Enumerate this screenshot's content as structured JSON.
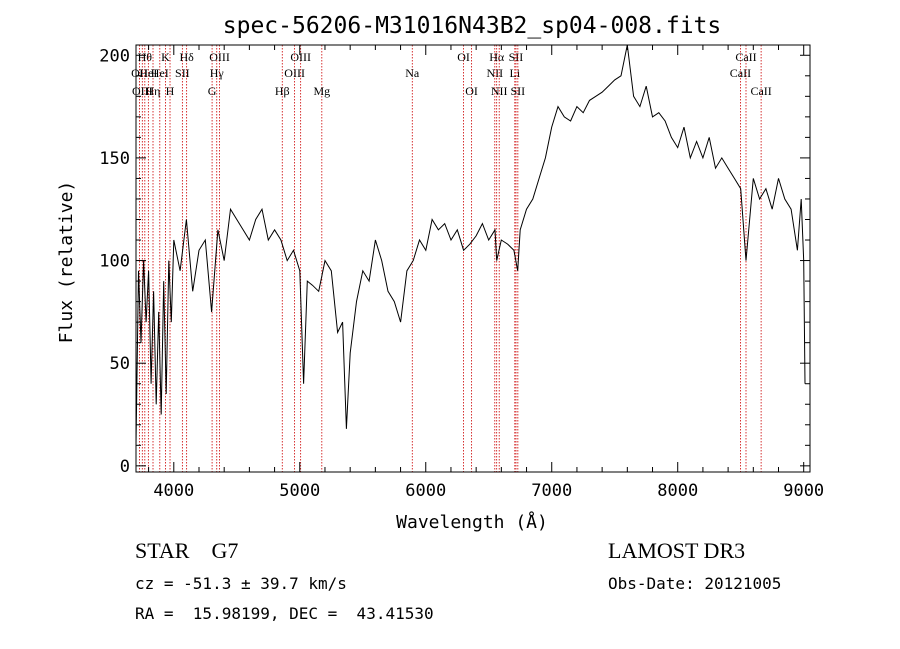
{
  "chart_data": {
    "type": "line",
    "title": "spec-56206-M31016N43B2_sp04-008.fits",
    "xlabel": "Wavelength (Å)",
    "ylabel": "Flux (relative)",
    "xlim": [
      3700,
      9050
    ],
    "ylim": [
      -3,
      205
    ],
    "xticks": [
      4000,
      5000,
      6000,
      7000,
      8000,
      9000
    ],
    "yticks": [
      0,
      50,
      100,
      150,
      200
    ],
    "grid": false,
    "line_color": "#000000",
    "marker_line_color": "#cc0000",
    "series": [
      {
        "x": [
          3700,
          3720,
          3740,
          3760,
          3780,
          3800,
          3820,
          3840,
          3860,
          3880,
          3900,
          3920,
          3940,
          3960,
          3980,
          4000,
          4050,
          4100,
          4150,
          4200,
          4250,
          4300,
          4350,
          4400,
          4450,
          4500,
          4550,
          4600,
          4650,
          4700,
          4750,
          4800,
          4850,
          4900,
          4950,
          5000,
          5030,
          5060,
          5100,
          5150,
          5200,
          5250,
          5300,
          5340,
          5370,
          5400,
          5450,
          5500,
          5550,
          5600,
          5650,
          5700,
          5750,
          5800,
          5850,
          5900,
          5950,
          6000,
          6050,
          6100,
          6150,
          6200,
          6250,
          6300,
          6350,
          6400,
          6450,
          6500,
          6550,
          6563,
          6600,
          6650,
          6700,
          6730,
          6750,
          6800,
          6850,
          6900,
          6950,
          7000,
          7050,
          7100,
          7150,
          7200,
          7250,
          7300,
          7350,
          7400,
          7450,
          7500,
          7550,
          7600,
          7650,
          7700,
          7750,
          7800,
          7850,
          7900,
          7950,
          8000,
          8050,
          8100,
          8150,
          8200,
          8250,
          8300,
          8350,
          8400,
          8450,
          8500,
          8542,
          8600,
          8650,
          8700,
          8750,
          8800,
          8850,
          8900,
          8950,
          8980,
          9000,
          9010
        ],
        "y": [
          10,
          95,
          60,
          100,
          70,
          95,
          40,
          85,
          30,
          75,
          25,
          90,
          35,
          100,
          70,
          110,
          95,
          120,
          85,
          105,
          110,
          75,
          115,
          100,
          125,
          120,
          115,
          110,
          120,
          125,
          110,
          115,
          110,
          100,
          105,
          95,
          40,
          90,
          88,
          85,
          100,
          95,
          65,
          70,
          18,
          55,
          80,
          95,
          90,
          110,
          100,
          85,
          80,
          70,
          95,
          100,
          110,
          105,
          120,
          115,
          118,
          110,
          115,
          105,
          108,
          112,
          118,
          110,
          115,
          100,
          110,
          108,
          105,
          95,
          115,
          125,
          130,
          140,
          150,
          165,
          175,
          170,
          168,
          175,
          172,
          178,
          180,
          182,
          185,
          188,
          190,
          205,
          180,
          175,
          185,
          170,
          172,
          168,
          160,
          155,
          165,
          150,
          158,
          150,
          160,
          145,
          150,
          145,
          140,
          135,
          100,
          140,
          130,
          135,
          125,
          140,
          130,
          125,
          105,
          130,
          100,
          40
        ]
      }
    ],
    "line_markers": [
      {
        "wl": 3727,
        "label": "OII",
        "row": 1
      },
      {
        "wl": 3750,
        "label": "OIII",
        "row": 2
      },
      {
        "wl": 3770,
        "label": "Hθ",
        "row": 0
      },
      {
        "wl": 3798,
        "label": "HeI",
        "row": 1
      },
      {
        "wl": 3835,
        "label": "Hη",
        "row": 2
      },
      {
        "wl": 3889,
        "label": "HeI",
        "row": 1
      },
      {
        "wl": 3934,
        "label": "K",
        "row": 0
      },
      {
        "wl": 3970,
        "label": "H",
        "row": 2
      },
      {
        "wl": 4068,
        "label": "SII",
        "row": 1
      },
      {
        "wl": 4102,
        "label": "Hδ",
        "row": 0
      },
      {
        "wl": 4304,
        "label": "G",
        "row": 2
      },
      {
        "wl": 4341,
        "label": "Hγ",
        "row": 1
      },
      {
        "wl": 4363,
        "label": "OIII",
        "row": 0
      },
      {
        "wl": 4861,
        "label": "Hβ",
        "row": 2
      },
      {
        "wl": 4959,
        "label": "OIII",
        "row": 1
      },
      {
        "wl": 5007,
        "label": "OIII",
        "row": 0
      },
      {
        "wl": 5175,
        "label": "Mg",
        "row": 2
      },
      {
        "wl": 5893,
        "label": "Na",
        "row": 1
      },
      {
        "wl": 6300,
        "label": "OI",
        "row": 0
      },
      {
        "wl": 6364,
        "label": "OI",
        "row": 2
      },
      {
        "wl": 6548,
        "label": "NII",
        "row": 1
      },
      {
        "wl": 6563,
        "label": "Hα",
        "row": 0
      },
      {
        "wl": 6583,
        "label": "NII",
        "row": 2
      },
      {
        "wl": 6707,
        "label": "Li",
        "row": 1
      },
      {
        "wl": 6716,
        "label": "SII",
        "row": 0
      },
      {
        "wl": 6731,
        "label": "SII",
        "row": 2
      },
      {
        "wl": 8498,
        "label": "CaII",
        "row": 1
      },
      {
        "wl": 8542,
        "label": "CaII",
        "row": 0
      },
      {
        "wl": 8662,
        "label": "CaII",
        "row": 2
      }
    ]
  },
  "info": {
    "class_label": "STAR    G7",
    "cz_line": "cz = -51.3 ± 39.7 km/s",
    "coord_line": "RA =  15.98199, DEC =  43.41530",
    "survey_label": "LAMOST DR3",
    "obs_date_line": "Obs-Date: 20121005"
  }
}
